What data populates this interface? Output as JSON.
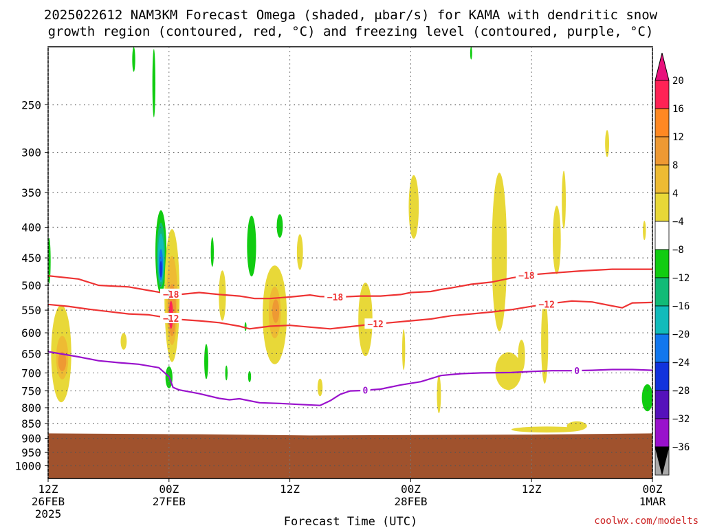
{
  "chart_data": {
    "type": "heatmap",
    "title_line1": "2025022612 NAM3KM Forecast Omega (shaded, μbar/s) for KAMA with dendritic snow",
    "title_line2": "growth region (contoured, red, °C) and freezing level (contoured, purple, °C)",
    "xlabel": "Forecast Time (UTC)",
    "credit": "coolwx.com/modelts",
    "x_ticks": [
      {
        "h": 0,
        "line1": "12Z",
        "line2": "26FEB",
        "line3": "2025"
      },
      {
        "h": 12,
        "line1": "00Z",
        "line2": "27FEB",
        "line3": ""
      },
      {
        "h": 24,
        "line1": "12Z",
        "line2": "",
        "line3": ""
      },
      {
        "h": 36,
        "line1": "00Z",
        "line2": "28FEB",
        "line3": ""
      },
      {
        "h": 48,
        "line1": "12Z",
        "line2": "",
        "line3": ""
      },
      {
        "h": 60,
        "line1": "00Z",
        "line2": "1MAR",
        "line3": ""
      }
    ],
    "xlim": [
      0,
      60
    ],
    "y_scale": "log",
    "ylim": [
      200,
      1050
    ],
    "y_ticks": [
      250,
      300,
      350,
      400,
      450,
      500,
      550,
      600,
      650,
      700,
      750,
      800,
      850,
      900,
      950,
      1000
    ],
    "grid": true,
    "ground": {
      "color": "#a0522d",
      "top_p": [
        [
          0,
          883
        ],
        [
          15,
          886
        ],
        [
          26,
          890
        ],
        [
          48,
          887
        ],
        [
          60,
          883
        ]
      ]
    },
    "colorbar": {
      "labels": [
        "20",
        "16",
        "12",
        "8",
        "4",
        "−4",
        "−8",
        "−12",
        "−16",
        "−20",
        "−24",
        "−28",
        "−32",
        "−36"
      ],
      "colors": [
        "#ff2255",
        "#ff8822",
        "#ee9933",
        "#eebb33",
        "#e8d838",
        "#ffffff",
        "#11cc11",
        "#11bb77",
        "#11bbbb",
        "#1177ee",
        "#1133dd",
        "#5511bb",
        "#9911cc",
        "#aaaaaa"
      ],
      "top_arrow_color": "#e8117c",
      "bottom_arrow_color": "#000000"
    },
    "contours": [
      {
        "label": "−18",
        "color": "#ee3333",
        "label_at": [
          [
            12.2,
            16
          ],
          [
            28.5,
            30
          ],
          [
            47.5,
            48
          ]
        ],
        "points": [
          [
            0,
            482
          ],
          [
            3,
            488
          ],
          [
            5,
            500
          ],
          [
            8,
            503
          ],
          [
            10,
            510
          ],
          [
            11.5,
            515
          ],
          [
            12,
            517
          ],
          [
            13,
            518
          ],
          [
            15,
            514
          ],
          [
            17,
            518
          ],
          [
            19,
            521
          ],
          [
            20.5,
            526
          ],
          [
            22,
            526
          ],
          [
            24,
            523
          ],
          [
            26,
            519
          ],
          [
            27,
            522
          ],
          [
            29,
            523
          ],
          [
            31,
            521
          ],
          [
            33,
            521
          ],
          [
            35,
            518
          ],
          [
            36,
            514
          ],
          [
            38,
            512
          ],
          [
            39,
            508
          ],
          [
            40,
            505
          ],
          [
            42,
            498
          ],
          [
            44,
            494
          ],
          [
            46,
            486
          ],
          [
            48,
            480
          ],
          [
            50,
            477
          ],
          [
            53,
            473
          ],
          [
            56,
            470
          ],
          [
            58,
            470
          ],
          [
            60,
            470
          ]
        ]
      },
      {
        "label": "−12",
        "color": "#ee3333",
        "label_at": [
          [
            12.2,
            57
          ],
          [
            32.5,
            33
          ],
          [
            49.5,
            51
          ]
        ],
        "points": [
          [
            0,
            538
          ],
          [
            2,
            542
          ],
          [
            4,
            548
          ],
          [
            6,
            553
          ],
          [
            8,
            558
          ],
          [
            10,
            560
          ],
          [
            12,
            567
          ],
          [
            13,
            570
          ],
          [
            15,
            573
          ],
          [
            17,
            577
          ],
          [
            19,
            585
          ],
          [
            20,
            591
          ],
          [
            22,
            585
          ],
          [
            24,
            583
          ],
          [
            26,
            587
          ],
          [
            28,
            591
          ],
          [
            30,
            586
          ],
          [
            32,
            581
          ],
          [
            34,
            577
          ],
          [
            36,
            573
          ],
          [
            38,
            569
          ],
          [
            40,
            562
          ],
          [
            42,
            558
          ],
          [
            44,
            554
          ],
          [
            46,
            549
          ],
          [
            48,
            542
          ],
          [
            50,
            536
          ],
          [
            52,
            531
          ],
          [
            54,
            533
          ],
          [
            56,
            541
          ],
          [
            57,
            545
          ],
          [
            58,
            535
          ],
          [
            60,
            534
          ]
        ]
      },
      {
        "label": "0",
        "color": "#9911cc",
        "label_at": [
          [
            31.5,
            34
          ],
          [
            52.5,
            58
          ]
        ],
        "points": [
          [
            0,
            645
          ],
          [
            3,
            658
          ],
          [
            5,
            668
          ],
          [
            7,
            673
          ],
          [
            9,
            677
          ],
          [
            11,
            686
          ],
          [
            12,
            710
          ],
          [
            12.4,
            740
          ],
          [
            13,
            747
          ],
          [
            15,
            758
          ],
          [
            17,
            772
          ],
          [
            18,
            776
          ],
          [
            19,
            773
          ],
          [
            21,
            785
          ],
          [
            23,
            787
          ],
          [
            25,
            790
          ],
          [
            27,
            793
          ],
          [
            28,
            779
          ],
          [
            29,
            760
          ],
          [
            30,
            750
          ],
          [
            31,
            749
          ],
          [
            33,
            745
          ],
          [
            35,
            733
          ],
          [
            37,
            724
          ],
          [
            39,
            707
          ],
          [
            41,
            702
          ],
          [
            43,
            700
          ],
          [
            46,
            699
          ],
          [
            48,
            696
          ],
          [
            50,
            694
          ],
          [
            52,
            694
          ],
          [
            54,
            693
          ],
          [
            56,
            691
          ],
          [
            58,
            691
          ],
          [
            60,
            693
          ]
        ]
      }
    ],
    "omega_shading": [
      {
        "color": "#11cc11",
        "cx": 11.2,
        "cy": 440,
        "rx": 0.55,
        "ry": 70
      },
      {
        "color": "#11bb77",
        "cx": 11.2,
        "cy": 445,
        "rx": 0.4,
        "ry": 55
      },
      {
        "color": "#11bbbb",
        "cx": 11.2,
        "cy": 450,
        "rx": 0.3,
        "ry": 42
      },
      {
        "color": "#1177ee",
        "cx": 11.2,
        "cy": 462,
        "rx": 0.2,
        "ry": 28
      },
      {
        "color": "#1133dd",
        "cx": 11.2,
        "cy": 470,
        "rx": 0.12,
        "ry": 15
      },
      {
        "color": "#e8d838",
        "cx": 12.3,
        "cy": 520,
        "rx": 0.75,
        "ry": 130
      },
      {
        "color": "#eebb33",
        "cx": 12.3,
        "cy": 530,
        "rx": 0.55,
        "ry": 90
      },
      {
        "color": "#ee9933",
        "cx": 12.3,
        "cy": 550,
        "rx": 0.4,
        "ry": 55
      },
      {
        "color": "#ff2255",
        "cx": 12.2,
        "cy": 560,
        "rx": 0.2,
        "ry": 30
      },
      {
        "color": "#11cc11",
        "cx": 12.0,
        "cy": 712,
        "rx": 0.35,
        "ry": 30
      },
      {
        "color": "#11cc11",
        "cx": 10.5,
        "cy": 230,
        "rx": 0.15,
        "ry": 30
      },
      {
        "color": "#11cc11",
        "cx": 8.5,
        "cy": 210,
        "rx": 0.15,
        "ry": 10
      },
      {
        "color": "#11cc11",
        "cx": 20.2,
        "cy": 430,
        "rx": 0.45,
        "ry": 50
      },
      {
        "color": "#11cc11",
        "cx": 23.0,
        "cy": 398,
        "rx": 0.3,
        "ry": 18
      },
      {
        "color": "#11cc11",
        "cx": 16.3,
        "cy": 440,
        "rx": 0.15,
        "ry": 25
      },
      {
        "color": "#11cc11",
        "cx": 15.7,
        "cy": 670,
        "rx": 0.2,
        "ry": 45
      },
      {
        "color": "#11cc11",
        "cx": 19.6,
        "cy": 586,
        "rx": 0.1,
        "ry": 10
      },
      {
        "color": "#11cc11",
        "cx": 17.7,
        "cy": 700,
        "rx": 0.12,
        "ry": 20
      },
      {
        "color": "#11cc11",
        "cx": 20.0,
        "cy": 710,
        "rx": 0.15,
        "ry": 15
      },
      {
        "color": "#11cc11",
        "cx": 0.1,
        "cy": 455,
        "rx": 0.15,
        "ry": 40
      },
      {
        "color": "#11cc11",
        "cx": 59.5,
        "cy": 770,
        "rx": 0.55,
        "ry": 40
      },
      {
        "color": "#11cc11",
        "cx": 42.0,
        "cy": 205,
        "rx": 0.1,
        "ry": 5
      },
      {
        "color": "#e8d838",
        "cx": 1.3,
        "cy": 650,
        "rx": 1.0,
        "ry": 120
      },
      {
        "color": "#eebb33",
        "cx": 1.4,
        "cy": 660,
        "rx": 0.6,
        "ry": 55
      },
      {
        "color": "#ee9933",
        "cx": 1.4,
        "cy": 670,
        "rx": 0.4,
        "ry": 25
      },
      {
        "color": "#e8d838",
        "cx": 17.3,
        "cy": 520,
        "rx": 0.35,
        "ry": 50
      },
      {
        "color": "#e8d838",
        "cx": 22.5,
        "cy": 560,
        "rx": 1.2,
        "ry": 105
      },
      {
        "color": "#eebb33",
        "cx": 22.5,
        "cy": 555,
        "rx": 0.6,
        "ry": 55
      },
      {
        "color": "#ee9933",
        "cx": 22.6,
        "cy": 552,
        "rx": 0.35,
        "ry": 25
      },
      {
        "color": "#e8d838",
        "cx": 25.0,
        "cy": 440,
        "rx": 0.3,
        "ry": 30
      },
      {
        "color": "#e8d838",
        "cx": 27.0,
        "cy": 740,
        "rx": 0.25,
        "ry": 25
      },
      {
        "color": "#e8d838",
        "cx": 31.5,
        "cy": 570,
        "rx": 0.7,
        "ry": 80
      },
      {
        "color": "#e8d838",
        "cx": 36.3,
        "cy": 370,
        "rx": 0.5,
        "ry": 45
      },
      {
        "color": "#e8d838",
        "cx": 35.3,
        "cy": 640,
        "rx": 0.15,
        "ry": 50
      },
      {
        "color": "#e8d838",
        "cx": 38.8,
        "cy": 760,
        "rx": 0.2,
        "ry": 55
      },
      {
        "color": "#e8d838",
        "cx": 44.8,
        "cy": 440,
        "rx": 0.75,
        "ry": 130
      },
      {
        "color": "#e8d838",
        "cx": 45.7,
        "cy": 695,
        "rx": 1.3,
        "ry": 50
      },
      {
        "color": "#e8d838",
        "cx": 47.0,
        "cy": 655,
        "rx": 0.35,
        "ry": 40
      },
      {
        "color": "#e8d838",
        "cx": 49.3,
        "cy": 620,
        "rx": 0.35,
        "ry": 100
      },
      {
        "color": "#e8d838",
        "cx": 50.5,
        "cy": 420,
        "rx": 0.4,
        "ry": 55
      },
      {
        "color": "#e8d838",
        "cx": 51.2,
        "cy": 360,
        "rx": 0.2,
        "ry": 40
      },
      {
        "color": "#e8d838",
        "cx": 49.5,
        "cy": 870,
        "rx": 3.5,
        "ry": 10
      },
      {
        "color": "#e8d838",
        "cx": 52.5,
        "cy": 858,
        "rx": 1.0,
        "ry": 15
      },
      {
        "color": "#e8d838",
        "cx": 55.5,
        "cy": 290,
        "rx": 0.2,
        "ry": 15
      },
      {
        "color": "#e8d838",
        "cx": 59.2,
        "cy": 405,
        "rx": 0.15,
        "ry": 15
      },
      {
        "color": "#e8d838",
        "cx": 7.5,
        "cy": 620,
        "rx": 0.3,
        "ry": 20
      }
    ]
  }
}
